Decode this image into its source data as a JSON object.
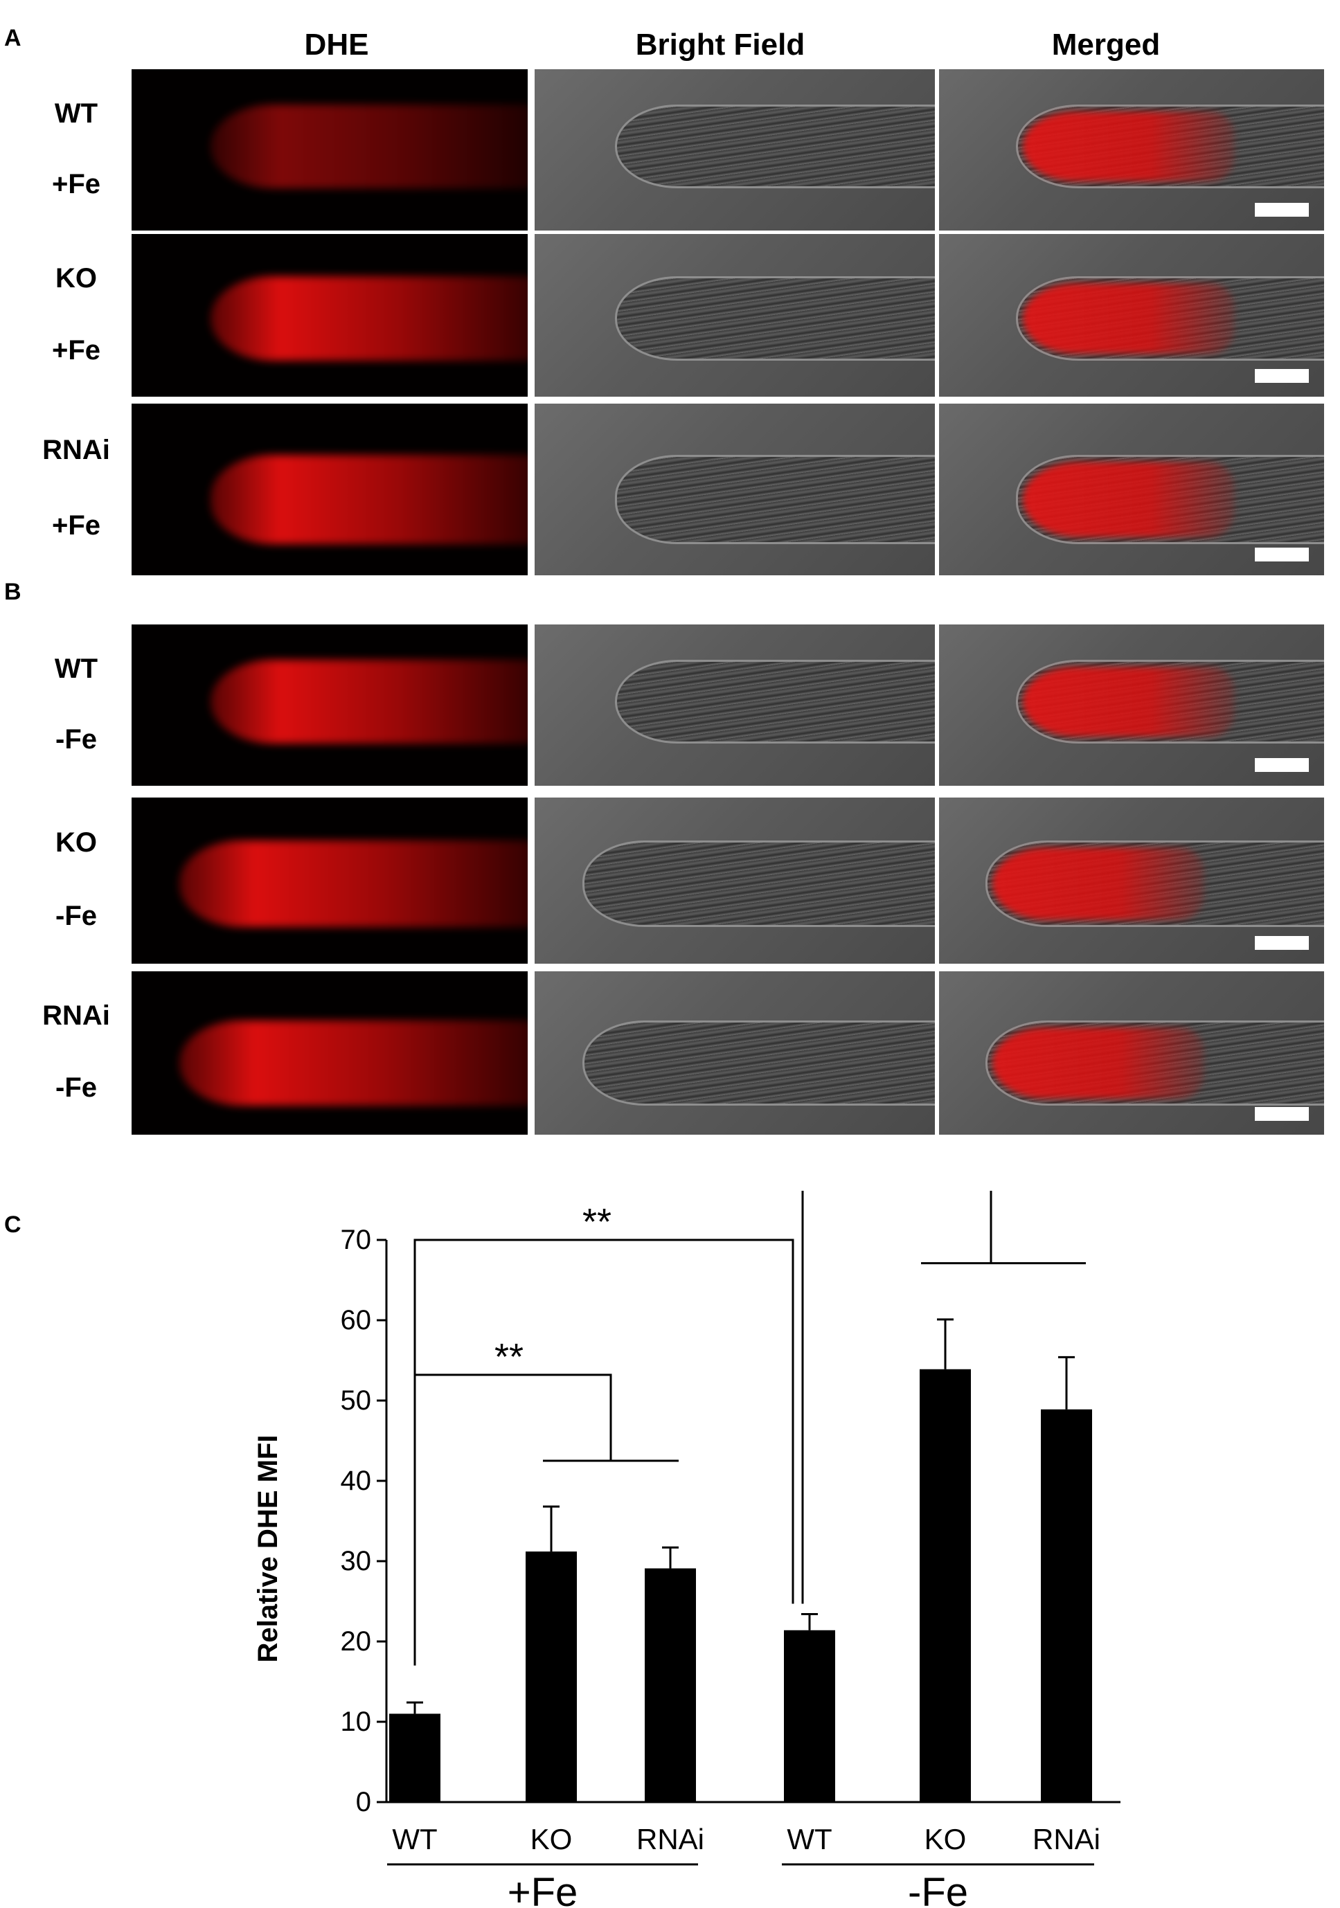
{
  "panels": {
    "a_letter": "A",
    "b_letter": "B",
    "c_letter": "C"
  },
  "column_headers": [
    "DHE",
    "Bright Field",
    "Merged"
  ],
  "rows": [
    {
      "genotype": "WT",
      "treatment": "+Fe"
    },
    {
      "genotype": "KO",
      "treatment": "+Fe"
    },
    {
      "genotype": "RNAi",
      "treatment": "+Fe"
    },
    {
      "genotype": "WT",
      "treatment": "-Fe"
    },
    {
      "genotype": "KO",
      "treatment": "-Fe"
    },
    {
      "genotype": "RNAi",
      "treatment": "-Fe"
    }
  ],
  "colors": {
    "fluorescence": "#e10a0a",
    "bar": "#000000"
  },
  "chart_data": {
    "type": "bar",
    "ylabel": "Relative DHE MFI",
    "ylim": [
      0,
      70
    ],
    "yticks": [
      0,
      10,
      20,
      30,
      40,
      50,
      60,
      70
    ],
    "categories": [
      "WT",
      "KO",
      "RNAi",
      "WT",
      "KO",
      "RNAi"
    ],
    "groups": [
      {
        "label": "+Fe",
        "categories": [
          "WT",
          "KO",
          "RNAi"
        ]
      },
      {
        "label": "-Fe",
        "categories": [
          "WT",
          "KO",
          "RNAi"
        ]
      }
    ],
    "values": [
      11,
      31.2,
      29.1,
      21.4,
      53.9,
      48.9
    ],
    "errors": [
      1.4,
      5.6,
      2.6,
      2.0,
      6.2,
      6.5
    ],
    "significance": [
      {
        "label": "**",
        "from": [
          0
        ],
        "to": [
          1,
          2
        ]
      },
      {
        "label": "**",
        "from": [
          0
        ],
        "to": [
          3
        ]
      },
      {
        "label": "**",
        "from": [
          3
        ],
        "to": [
          4,
          5
        ]
      }
    ],
    "grid": false,
    "legend": "none"
  }
}
